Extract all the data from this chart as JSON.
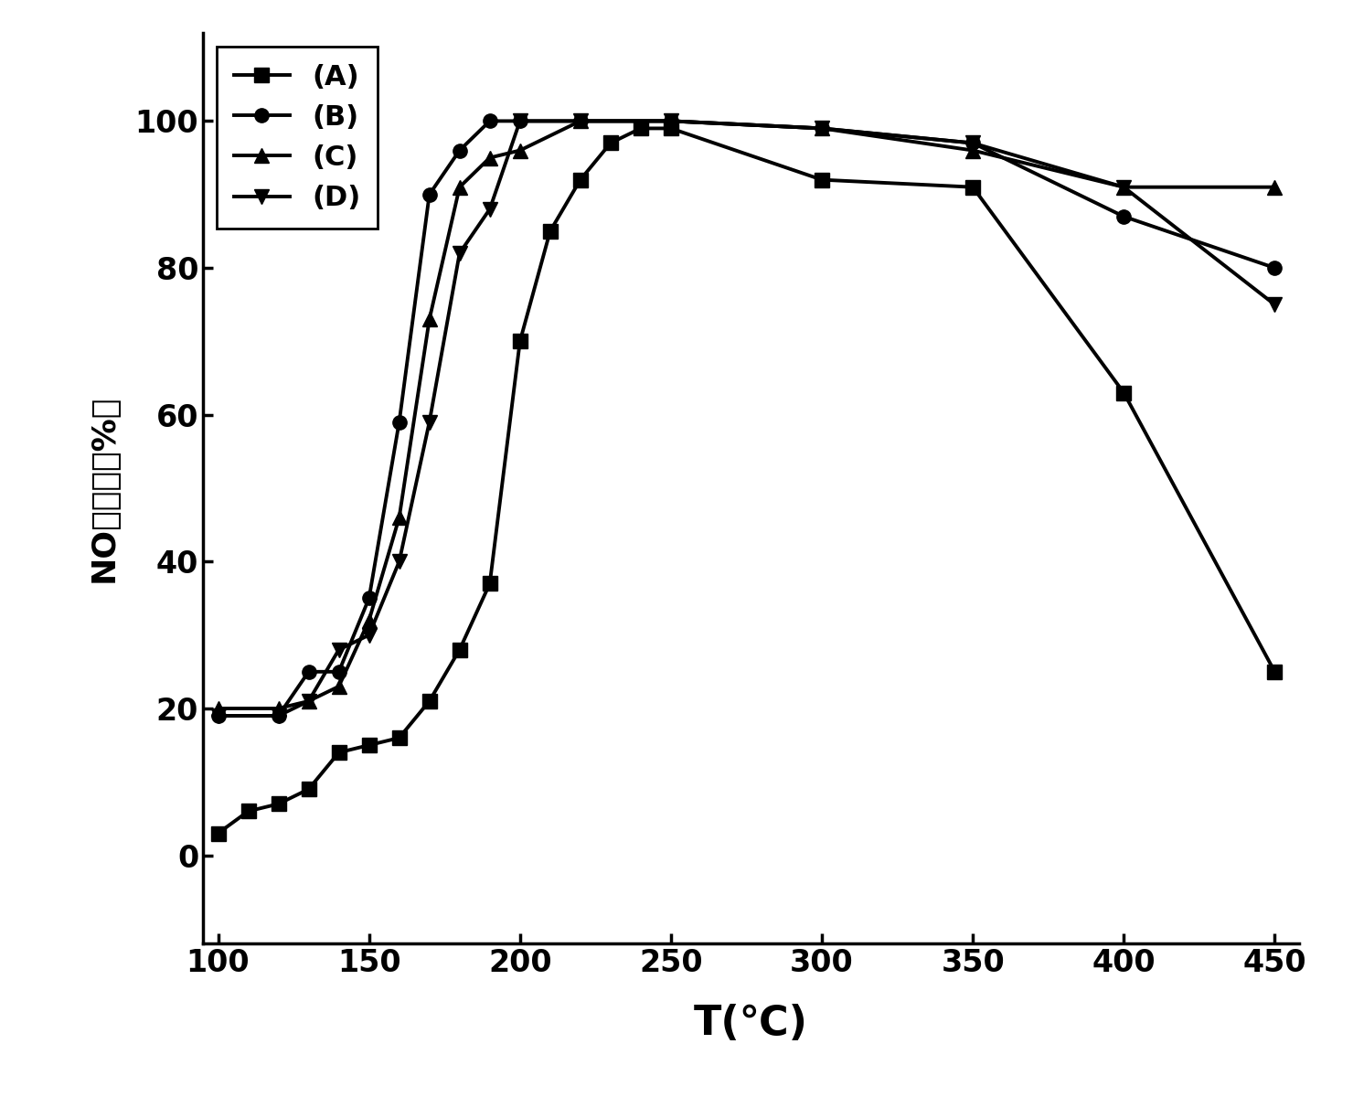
{
  "series": {
    "A": {
      "x": [
        100,
        110,
        120,
        130,
        140,
        150,
        160,
        170,
        180,
        190,
        200,
        210,
        220,
        230,
        240,
        250,
        300,
        350,
        400,
        450
      ],
      "y": [
        3,
        6,
        7,
        9,
        14,
        15,
        16,
        21,
        28,
        37,
        70,
        85,
        92,
        97,
        99,
        99,
        92,
        91,
        63,
        25
      ],
      "marker": "s",
      "label": "(A)"
    },
    "B": {
      "x": [
        100,
        120,
        130,
        140,
        150,
        160,
        170,
        180,
        190,
        200,
        220,
        250,
        300,
        350,
        400,
        450
      ],
      "y": [
        19,
        19,
        25,
        25,
        35,
        59,
        90,
        96,
        100,
        100,
        100,
        100,
        99,
        97,
        87,
        80
      ],
      "marker": "o",
      "label": "(B)"
    },
    "C": {
      "x": [
        100,
        120,
        130,
        140,
        150,
        160,
        170,
        180,
        190,
        200,
        220,
        250,
        300,
        350,
        400,
        450
      ],
      "y": [
        20,
        20,
        21,
        23,
        32,
        46,
        73,
        91,
        95,
        96,
        100,
        100,
        99,
        96,
        91,
        91
      ],
      "marker": "^",
      "label": "(C)"
    },
    "D": {
      "x": [
        100,
        120,
        130,
        140,
        150,
        160,
        170,
        180,
        190,
        200,
        220,
        250,
        300,
        350,
        400,
        450
      ],
      "y": [
        19,
        19,
        21,
        28,
        30,
        40,
        59,
        82,
        88,
        100,
        100,
        100,
        99,
        97,
        91,
        75
      ],
      "marker": "v",
      "label": "(D)"
    }
  },
  "xlim": [
    95,
    458
  ],
  "ylim": [
    -12,
    112
  ],
  "xticks": [
    100,
    150,
    200,
    250,
    300,
    350,
    400,
    450
  ],
  "yticks": [
    0,
    20,
    40,
    60,
    80,
    100
  ],
  "xlabel": "T(℃)",
  "ylabel": "NO转化率（%）",
  "linewidth": 2.8,
  "markersize": 11,
  "color": "#000000",
  "legend_fontsize": 22,
  "tick_fontsize": 24,
  "xlabel_fontsize": 32,
  "ylabel_fontsize": 26
}
